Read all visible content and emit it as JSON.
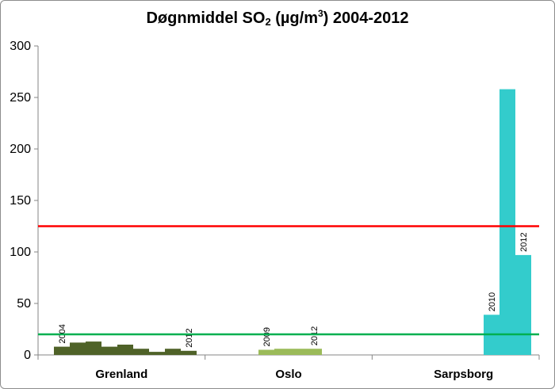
{
  "chart_data": {
    "type": "bar",
    "title_parts": [
      "Døgnmiddel SO",
      "2",
      " (µg/m",
      "3",
      ") 2004-2012"
    ],
    "ylim": [
      0,
      300
    ],
    "yticks": [
      0,
      50,
      100,
      150,
      200,
      250,
      300
    ],
    "grid": false,
    "groups": [
      {
        "name": "Grenland",
        "color": "#4f6228",
        "years": [
          2004,
          2005,
          2006,
          2007,
          2008,
          2009,
          2010,
          2011,
          2012
        ],
        "values": [
          8,
          12,
          13,
          8,
          10,
          6,
          3,
          6,
          4
        ],
        "labeled_years": [
          "2004",
          "2012"
        ]
      },
      {
        "name": "Oslo",
        "color": "#9bbb59",
        "years": [
          2009,
          2010,
          2011,
          2012
        ],
        "values": [
          5,
          6,
          6,
          6
        ],
        "labeled_years": [
          "2009",
          "2012"
        ]
      },
      {
        "name": "Sarpsborg",
        "color": "#33cccc",
        "years": [
          2010,
          2011,
          2012
        ],
        "values": [
          39,
          258,
          97
        ],
        "labeled_years": [
          "2010",
          "2012"
        ]
      }
    ],
    "reference_lines": [
      {
        "value": 125,
        "color": "#ff0000"
      },
      {
        "value": 20,
        "color": "#00b050"
      }
    ]
  }
}
